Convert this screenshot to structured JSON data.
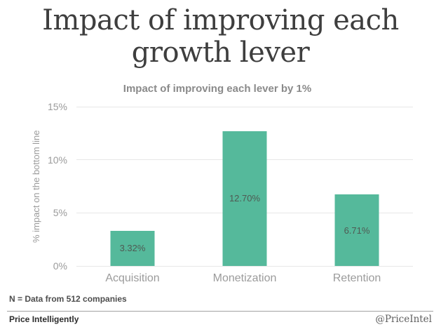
{
  "page": {
    "title_line1": "Impact of improving each",
    "title_line2": "growth lever"
  },
  "chart_data": {
    "type": "bar",
    "title": "Impact of improving each lever by 1%",
    "categories": [
      "Acquisition",
      "Monetization",
      "Retention"
    ],
    "values": [
      3.32,
      12.7,
      6.71
    ],
    "value_labels": [
      "3.32%",
      "12.70%",
      "6.71%"
    ],
    "xlabel": "",
    "ylabel": "% impact on the bottom line",
    "ylim": [
      0,
      15
    ],
    "yticks": [
      0,
      5,
      10,
      15
    ],
    "ytick_labels": [
      "0%",
      "5%",
      "10%",
      "15%"
    ],
    "grid": true,
    "legend": "none",
    "bar_color": "#55b99b",
    "bar_label_color": "#4f5a53"
  },
  "footnote": "N = Data from 512 companies",
  "footer": {
    "brand": "Price Intelligently",
    "handle": "@PriceIntel"
  }
}
